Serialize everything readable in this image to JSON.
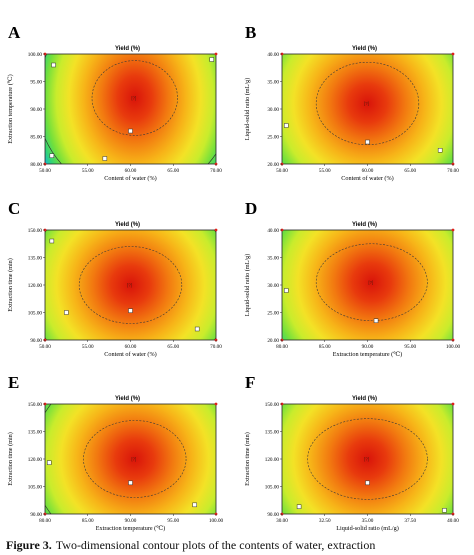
{
  "chart_data": [
    {
      "letter": "A",
      "type": "heatmap",
      "title": "Yield (%)",
      "xlabel": "Content of water (%)",
      "ylabel": "Extraction temperature (℃)",
      "xlim": [
        50.0,
        70.0
      ],
      "ylim": [
        80.0,
        100.0
      ],
      "xticks": [
        "50.00",
        "55.00",
        "60.00",
        "65.00",
        "70.00"
      ],
      "yticks": [
        "80.00",
        "85.00",
        "90.00",
        "95.00",
        "100.00"
      ],
      "optimum": [
        60.5,
        92.0
      ],
      "spread": [
        8.0,
        16.0
      ],
      "inner_contour": [
        5.0,
        6.8
      ],
      "outer_contour": [
        11.5,
        18.0
      ],
      "points": [
        [
          51.0,
          98.0
        ],
        [
          60.0,
          86.0
        ],
        [
          57.0,
          81.0
        ],
        [
          69.5,
          99.0
        ],
        [
          50.8,
          81.5
        ]
      ],
      "center_label": "[?]",
      "grid": false,
      "legend": "none"
    },
    {
      "letter": "B",
      "type": "heatmap",
      "title": "Yield (%)",
      "xlabel": "Content of water (%)",
      "ylabel": "Liquid-solid ratio (mL/g)",
      "xlim": [
        50.0,
        70.0
      ],
      "ylim": [
        20.0,
        40.0
      ],
      "xticks": [
        "50.00",
        "55.00",
        "60.00",
        "65.00",
        "70.00"
      ],
      "yticks": [
        "20.00",
        "25.00",
        "30.00",
        "35.00",
        "40.00"
      ],
      "optimum": [
        60.0,
        31.0
      ],
      "spread": [
        9.0,
        14.0
      ],
      "inner_contour": [
        6.0,
        7.5
      ],
      "outer_contour": [
        13.0,
        18.5
      ],
      "points": [
        [
          50.5,
          27.0
        ],
        [
          60.0,
          24.0
        ],
        [
          68.5,
          22.5
        ]
      ],
      "center_label": "[?]",
      "grid": false,
      "legend": "none"
    },
    {
      "letter": "C",
      "type": "heatmap",
      "title": "Yield (%)",
      "xlabel": "Content of water (%)",
      "ylabel": "Extraction time (min)",
      "xlim": [
        50.0,
        70.0
      ],
      "ylim": [
        90.0,
        150.0
      ],
      "xticks": [
        "50.00",
        "55.00",
        "60.00",
        "65.00",
        "70.00"
      ],
      "yticks": [
        "90.00",
        "105.00",
        "120.00",
        "135.00",
        "150.00"
      ],
      "optimum": [
        60.0,
        120.0
      ],
      "spread": [
        9.0,
        42.0
      ],
      "inner_contour": [
        6.0,
        21.0
      ],
      "outer_contour": [
        12.0,
        52.0
      ],
      "points": [
        [
          50.8,
          144.0
        ],
        [
          52.5,
          105.0
        ],
        [
          60.0,
          106.0
        ],
        [
          67.8,
          96.0
        ]
      ],
      "center_label": "[?]",
      "grid": false,
      "legend": "none"
    },
    {
      "letter": "D",
      "type": "heatmap",
      "title": "Yield (%)",
      "xlabel": "Extraction temperature (℃)",
      "ylabel": "Liquid-solid ratio (mL/g)",
      "xlim": [
        80.0,
        100.0
      ],
      "ylim": [
        20.0,
        40.0
      ],
      "xticks": [
        "80.00",
        "85.00",
        "90.00",
        "95.00",
        "100.00"
      ],
      "yticks": [
        "20.00",
        "25.00",
        "30.00",
        "35.00",
        "40.00"
      ],
      "optimum": [
        90.5,
        30.5
      ],
      "spread": [
        9.0,
        14.0
      ],
      "inner_contour": [
        6.5,
        7.0
      ],
      "outer_contour": [
        13.0,
        18.5
      ],
      "points": [
        [
          80.5,
          29.0
        ],
        [
          91.0,
          23.5
        ]
      ],
      "center_label": "[?]",
      "grid": false,
      "legend": "none"
    },
    {
      "letter": "E",
      "type": "heatmap",
      "title": "Yield (%)",
      "xlabel": "Extraction temperature (℃)",
      "ylabel": "Extraction time (min)",
      "xlim": [
        80.0,
        100.0
      ],
      "ylim": [
        90.0,
        150.0
      ],
      "xticks": [
        "80.00",
        "85.00",
        "90.00",
        "95.00",
        "100.00"
      ],
      "yticks": [
        "90.00",
        "105.00",
        "120.00",
        "135.00",
        "150.00"
      ],
      "optimum": [
        90.5,
        120.0
      ],
      "spread": [
        9.0,
        42.0
      ],
      "inner_contour": [
        6.0,
        21.0
      ],
      "outer_contour": [
        12.0,
        52.0
      ],
      "points": [
        [
          80.5,
          118.0
        ],
        [
          90.0,
          107.0
        ],
        [
          97.5,
          95.0
        ]
      ],
      "center_label": "[?]",
      "grid": false,
      "legend": "none"
    },
    {
      "letter": "F",
      "type": "heatmap",
      "title": "Yield (%)",
      "xlabel": "Liquid-solid ratio (mL/g)",
      "ylabel": "Extraction time (min)",
      "xlim": [
        30.0,
        40.0
      ],
      "ylim": [
        90.0,
        150.0
      ],
      "xticks": [
        "30.00",
        "32.50",
        "35.00",
        "37.50",
        "40.00"
      ],
      "yticks": [
        "90.00",
        "105.00",
        "120.00",
        "135.00",
        "150.00"
      ],
      "optimum": [
        35.0,
        120.0
      ],
      "spread": [
        4.5,
        42.0
      ],
      "inner_contour": [
        3.5,
        22.0
      ],
      "outer_contour": [
        6.5,
        52.0
      ],
      "points": [
        [
          31.0,
          94.0
        ],
        [
          35.0,
          107.0
        ],
        [
          39.5,
          92.0
        ]
      ],
      "center_label": "[?]",
      "grid": false,
      "legend": "none"
    }
  ],
  "caption": {
    "label": "Figure 3.",
    "text": "Two-dimensional contour plots of the contents of water, extraction"
  }
}
